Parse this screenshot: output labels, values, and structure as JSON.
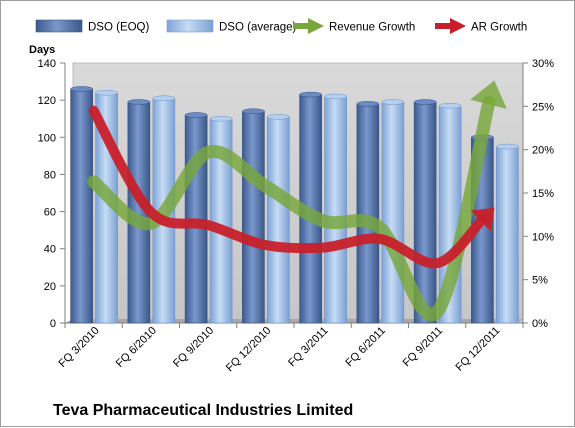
{
  "chart_data": {
    "type": "bar",
    "title": "Teva Pharmaceutical Industries Limited",
    "ylabel": "Days",
    "ylim": [
      0,
      140
    ],
    "y2lim": [
      0,
      0.3
    ],
    "yticks": [
      "0",
      "20",
      "40",
      "60",
      "80",
      "100",
      "120",
      "140"
    ],
    "y2ticks": [
      "0%",
      "5%",
      "10%",
      "15%",
      "20%",
      "25%",
      "30%"
    ],
    "categories": [
      "FQ 3/2010",
      "FQ 6/2010",
      "FQ 9/2010",
      "FQ 12/2010",
      "FQ 3/2011",
      "FQ 6/2011",
      "FQ 9/2011",
      "FQ 12/2011"
    ],
    "legend_position": "top",
    "grid": false,
    "series": [
      {
        "name": "DSO (EOQ)",
        "kind": "bar",
        "axis": "left",
        "color": "#4f6fa8",
        "values": [
          126,
          119,
          112,
          114,
          123,
          118,
          119,
          100
        ]
      },
      {
        "name": "DSO (average)",
        "kind": "bar",
        "axis": "left",
        "color": "#8fb4e3",
        "values": [
          124,
          121,
          110,
          111,
          122,
          119,
          117,
          95
        ]
      },
      {
        "name": "Revenue Growth",
        "kind": "line",
        "axis": "right",
        "color": "#77a73a",
        "values": [
          0.163,
          0.115,
          0.197,
          0.158,
          0.118,
          0.11,
          0.013,
          0.28
        ]
      },
      {
        "name": "AR Growth",
        "kind": "line",
        "axis": "right",
        "color": "#c8202a",
        "values": [
          0.245,
          0.128,
          0.113,
          0.09,
          0.087,
          0.097,
          0.069,
          0.133
        ]
      }
    ]
  }
}
